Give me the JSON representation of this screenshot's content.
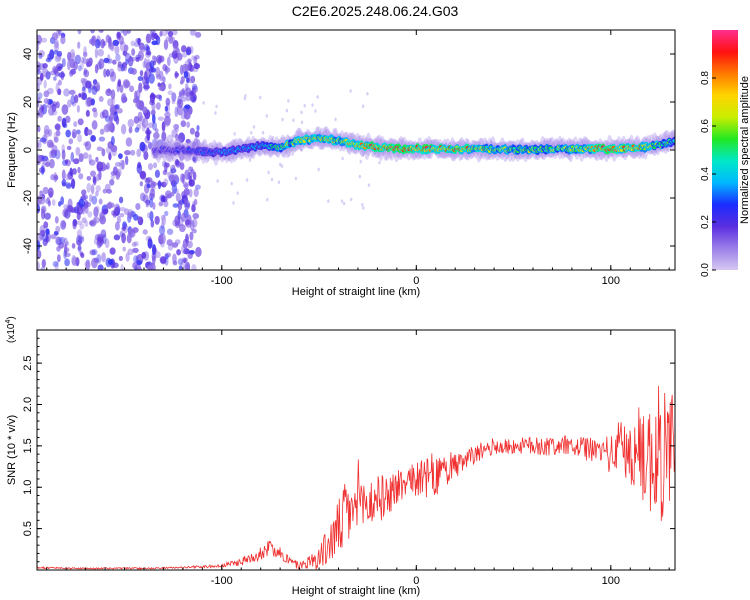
{
  "figure": {
    "title": "C2E6.2025.248.06.24.G03"
  },
  "chart_data": [
    {
      "type": "heatmap",
      "title": "C2E6.2025.248.06.24.G03",
      "xlabel": "Height of straight line (km)",
      "ylabel": "Frequency (Hz)",
      "xlim": [
        -195,
        133
      ],
      "ylim": [
        -50,
        50
      ],
      "xticks": [
        -100,
        0,
        100
      ],
      "yticks": [
        -40,
        -20,
        0,
        20,
        40
      ],
      "colorbar": {
        "label": "Normalized spectral amplitude",
        "range": [
          0,
          1
        ],
        "ticks": [
          "0.0",
          "0.2",
          "0.4",
          "0.6",
          "0.8"
        ],
        "tick_values": [
          0.0,
          0.2,
          0.4,
          0.6,
          0.8
        ],
        "colormap": [
          "#d6c8f2",
          "#9b7fe8",
          "#5b2ee0",
          "#1a2cff",
          "#00b8ff",
          "#00e8c8",
          "#22e822",
          "#c8ee00",
          "#ffd400",
          "#ff7a00",
          "#ff1010",
          "#ff2f8f"
        ]
      },
      "ridge": {
        "description_points_x": [
          -135,
          -120,
          -100,
          -80,
          -70,
          -60,
          -50,
          -40,
          -30,
          -20,
          -10,
          0,
          20,
          50,
          80,
          100,
          115,
          125,
          133
        ],
        "description_points_freq": [
          0,
          0,
          -1,
          2,
          1,
          4,
          5,
          4,
          2,
          1,
          0.5,
          0.5,
          0.5,
          0,
          0.5,
          0.5,
          1,
          2,
          4
        ],
        "amplitude": [
          0.2,
          0.25,
          0.35,
          0.4,
          0.6,
          0.7,
          0.75,
          0.7,
          0.8,
          0.9,
          0.9,
          0.9,
          0.85,
          0.6,
          0.65,
          0.9,
          0.8,
          0.6,
          0.5
        ]
      },
      "noise_region": {
        "x_start": -195,
        "x_end": -112,
        "freq_range": [
          -50,
          50
        ],
        "amplitude": 0.1
      }
    },
    {
      "type": "line",
      "xlabel": "Height of straight line (km)",
      "ylabel": "SNR (10 * v/v)",
      "scale_label": "(x10",
      "scale_exponent": "4",
      "scale_suffix": ")",
      "xlim": [
        -195,
        133
      ],
      "ylim": [
        0,
        2.9
      ],
      "xticks": [
        -100,
        0,
        100
      ],
      "yticks": [
        "0.5",
        "1.0",
        "1.5",
        "2.0",
        "2.5"
      ],
      "ytick_values": [
        0.5,
        1.0,
        1.5,
        2.0,
        2.5
      ],
      "color": "#f03030",
      "series": [
        {
          "name": "SNR",
          "x": [
            -195,
            -180,
            -160,
            -140,
            -120,
            -100,
            -90,
            -80,
            -75,
            -70,
            -65,
            -60,
            -55,
            -50,
            -45,
            -40,
            -35,
            -30,
            -25,
            -20,
            -15,
            -10,
            -5,
            0,
            5,
            10,
            15,
            20,
            25,
            30,
            35,
            40,
            45,
            50,
            55,
            60,
            70,
            80,
            90,
            95,
            100,
            105,
            110,
            115,
            120,
            125,
            130,
            133
          ],
          "y": [
            0.03,
            0.02,
            0.02,
            0.02,
            0.03,
            0.05,
            0.1,
            0.2,
            0.28,
            0.22,
            0.1,
            0.05,
            0.1,
            0.15,
            0.3,
            0.5,
            0.7,
            0.75,
            0.8,
            0.85,
            0.9,
            1.0,
            1.05,
            1.1,
            1.1,
            1.15,
            1.2,
            1.25,
            1.3,
            1.4,
            1.45,
            1.5,
            1.48,
            1.5,
            1.5,
            1.5,
            1.5,
            1.5,
            1.45,
            1.45,
            1.4,
            1.5,
            1.4,
            1.45,
            1.35,
            1.4,
            1.5,
            1.3
          ],
          "fluctuation": [
            0.01,
            0.01,
            0.01,
            0.01,
            0.01,
            0.02,
            0.05,
            0.08,
            0.1,
            0.1,
            0.06,
            0.05,
            0.08,
            0.15,
            0.25,
            0.35,
            0.45,
            0.35,
            0.3,
            0.3,
            0.25,
            0.25,
            0.2,
            0.2,
            0.25,
            0.3,
            0.2,
            0.15,
            0.15,
            0.12,
            0.1,
            0.1,
            0.1,
            0.1,
            0.1,
            0.12,
            0.12,
            0.12,
            0.15,
            0.15,
            0.25,
            0.35,
            0.45,
            0.55,
            0.7,
            0.85,
            0.95,
            0.8
          ]
        }
      ]
    }
  ]
}
